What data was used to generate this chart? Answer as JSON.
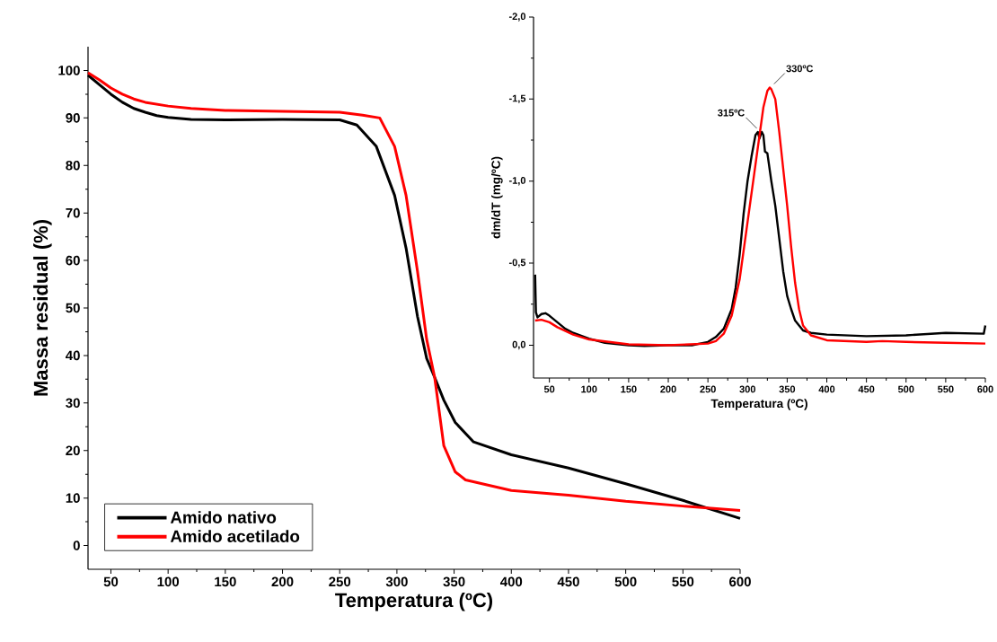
{
  "chart_data": [
    {
      "type": "line",
      "xlabel": "Temperatura (ºC)",
      "ylabel": "Massa residual (%)",
      "xlim": [
        30,
        600
      ],
      "ylim": [
        -5,
        105
      ],
      "xticks": [
        50,
        100,
        150,
        200,
        250,
        300,
        350,
        400,
        450,
        500,
        550,
        600
      ],
      "yticks": [
        0,
        10,
        20,
        30,
        40,
        50,
        60,
        70,
        80,
        90,
        100
      ],
      "legend": "bottom left",
      "series": [
        {
          "name": "Amido nativo",
          "color": "#000000",
          "x": [
            30,
            40,
            50,
            60,
            70,
            80,
            90,
            100,
            120,
            150,
            200,
            250,
            265,
            282,
            298,
            308,
            318,
            326,
            333,
            341,
            351,
            367,
            400,
            450,
            500,
            550,
            600
          ],
          "values": [
            99,
            97,
            95,
            93.3,
            92,
            91.2,
            90.5,
            90.1,
            89.7,
            89.6,
            89.7,
            89.6,
            88.5,
            84,
            73.7,
            62.6,
            48.2,
            39.4,
            35.4,
            30.6,
            25.9,
            21.8,
            19.1,
            16.3,
            13,
            9.5,
            5.7
          ]
        },
        {
          "name": "Amido acetilado",
          "color": "#ff0000",
          "x": [
            30,
            40,
            50,
            60,
            70,
            80,
            100,
            120,
            150,
            200,
            250,
            270,
            285,
            298,
            308,
            318,
            326,
            333,
            341,
            351,
            360,
            400,
            450,
            500,
            550,
            600
          ],
          "values": [
            99.5,
            98,
            96.3,
            95,
            94,
            93.3,
            92.5,
            92,
            91.6,
            91.4,
            91.2,
            90.6,
            90,
            84,
            73.7,
            57.7,
            43.4,
            35.4,
            21,
            15.5,
            13.8,
            11.6,
            10.6,
            9.3,
            8.3,
            7.4
          ]
        }
      ]
    },
    {
      "type": "line",
      "xlabel": "Temperatura (ºC)",
      "ylabel": "dm/dT (mg/ºC)",
      "xlim": [
        30,
        600
      ],
      "ylim": [
        0.2,
        -2.0
      ],
      "xticks": [
        50,
        100,
        150,
        200,
        250,
        300,
        350,
        400,
        450,
        500,
        550,
        600
      ],
      "yticks": [
        {
          "value": 0,
          "label": "0,0"
        },
        {
          "value": -0.5,
          "label": "-0,5"
        },
        {
          "value": -1.0,
          "label": "-1,0"
        },
        {
          "value": -1.5,
          "label": "-1,5"
        },
        {
          "value": -2.0,
          "label": "-2,0"
        }
      ],
      "annotations": [
        {
          "text": "315ºC",
          "x": 315,
          "y": -1.3
        },
        {
          "text": "330ºC",
          "x": 330,
          "y": -1.57
        }
      ],
      "series": [
        {
          "color": "#000000",
          "x": [
            32,
            33,
            35,
            40,
            45,
            50,
            60,
            70,
            80,
            100,
            120,
            150,
            170,
            200,
            230,
            240,
            250,
            260,
            270,
            280,
            285,
            290,
            295,
            300,
            305,
            310,
            313,
            315,
            318,
            320,
            322,
            325,
            330,
            335,
            340,
            345,
            350,
            355,
            360,
            370,
            380,
            400,
            450,
            500,
            550,
            598,
            600
          ],
          "values": [
            -0.43,
            -0.2,
            -0.17,
            -0.19,
            -0.195,
            -0.18,
            -0.14,
            -0.1,
            -0.075,
            -0.04,
            -0.015,
            0.0,
            0.005,
            0.0,
            0.0,
            -0.01,
            -0.02,
            -0.05,
            -0.1,
            -0.22,
            -0.35,
            -0.55,
            -0.8,
            -1.0,
            -1.15,
            -1.28,
            -1.3,
            -1.26,
            -1.3,
            -1.28,
            -1.18,
            -1.17,
            -1.0,
            -0.85,
            -0.65,
            -0.45,
            -0.3,
            -0.22,
            -0.15,
            -0.09,
            -0.075,
            -0.065,
            -0.055,
            -0.06,
            -0.075,
            -0.07,
            -0.12
          ]
        },
        {
          "color": "#ff0000",
          "x": [
            32,
            40,
            50,
            60,
            80,
            100,
            150,
            200,
            250,
            260,
            270,
            280,
            290,
            300,
            310,
            320,
            325,
            328,
            330,
            335,
            340,
            350,
            355,
            360,
            365,
            370,
            380,
            400,
            450,
            470,
            500,
            550,
            600
          ],
          "values": [
            -0.15,
            -0.155,
            -0.14,
            -0.11,
            -0.065,
            -0.035,
            -0.005,
            0.0,
            -0.01,
            -0.025,
            -0.07,
            -0.18,
            -0.4,
            -0.75,
            -1.1,
            -1.45,
            -1.55,
            -1.57,
            -1.56,
            -1.5,
            -1.3,
            -0.85,
            -0.6,
            -0.38,
            -0.22,
            -0.12,
            -0.06,
            -0.03,
            -0.02,
            -0.025,
            -0.02,
            -0.015,
            -0.01
          ]
        }
      ]
    }
  ]
}
